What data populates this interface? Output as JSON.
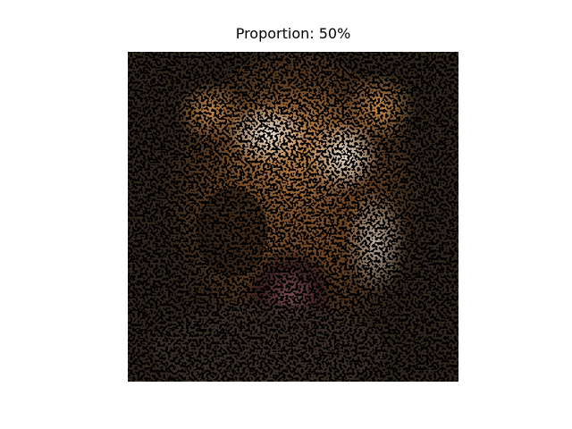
{
  "title": "Proportion: 50%"
}
